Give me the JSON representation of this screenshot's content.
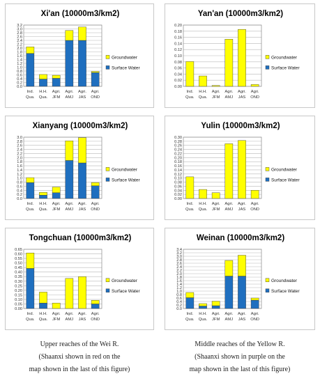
{
  "categories": [
    "Ind.\nQua.",
    "H.H.\nQua.",
    "Agri.\nJFM",
    "Agri.\nAMJ",
    "Agri.\nJAS",
    "Agri.\nOND"
  ],
  "legend": {
    "groundwater": "Groundwater",
    "surface": "Surface Water"
  },
  "colors": {
    "groundwater": "#ffff00",
    "surface": "#1f6fbf"
  },
  "captions": {
    "left": [
      "Upper reaches of the Wei R.",
      "(Shaanxi shown in red on the",
      "map shown in the last of this figure)"
    ],
    "right": [
      "Middle reaches of the Yellow R.",
      "(Shaanxi shown in purple on the",
      "map shown in the last of this figure)"
    ]
  },
  "chart_data": [
    {
      "type": "bar",
      "stacked": true,
      "title": "Xi'an (10000m3/km2)",
      "ylim": [
        0,
        3.2
      ],
      "ystep": 0.2,
      "decimals": 1,
      "legend_position": "right",
      "categories": [
        "Ind. Qua.",
        "H.H. Qua.",
        "Agri. JFM",
        "Agri. AMJ",
        "Agri. JAS",
        "Agri. OND"
      ],
      "series": [
        {
          "name": "Surface Water",
          "values": [
            1.72,
            0.38,
            0.42,
            2.4,
            2.4,
            0.72
          ]
        },
        {
          "name": "Groundwater",
          "values": [
            0.34,
            0.24,
            0.16,
            0.52,
            0.7,
            0.06
          ]
        }
      ]
    },
    {
      "type": "bar",
      "stacked": true,
      "title": "Yan'an (10000m3/km2)",
      "ylim": [
        0,
        0.2
      ],
      "ystep": 0.02,
      "decimals": 2,
      "legend_position": "right",
      "categories": [
        "Ind. Qua.",
        "H.H. Qua.",
        "Agri. JFM",
        "Agri. AMJ",
        "Agri. JAS",
        "Agri. OND"
      ],
      "series": [
        {
          "name": "Surface Water",
          "values": [
            0,
            0,
            0,
            0,
            0,
            0
          ]
        },
        {
          "name": "Groundwater",
          "values": [
            0.081,
            0.034,
            0.003,
            0.154,
            0.186,
            0.006
          ]
        }
      ]
    },
    {
      "type": "bar",
      "stacked": true,
      "title": "Xianyang (10000m3/km2)",
      "ylim": [
        0,
        3.0
      ],
      "ystep": 0.2,
      "decimals": 1,
      "legend_position": "right",
      "categories": [
        "Ind. Qua.",
        "H.H. Qua.",
        "Agri. JFM",
        "Agri. AMJ",
        "Agri. JAS",
        "Agri. OND"
      ],
      "series": [
        {
          "name": "Surface Water",
          "values": [
            0.78,
            0.16,
            0.28,
            1.86,
            1.74,
            0.62
          ]
        },
        {
          "name": "Groundwater",
          "values": [
            0.24,
            0.14,
            0.28,
            0.96,
            1.24,
            0.16
          ]
        }
      ]
    },
    {
      "type": "bar",
      "stacked": true,
      "title": "Yulin (10000m3/km2)",
      "ylim": [
        0,
        0.3
      ],
      "ystep": 0.02,
      "decimals": 2,
      "legend_position": "right",
      "categories": [
        "Ind. Qua.",
        "H.H. Qua.",
        "Agri. JFM",
        "Agri. AMJ",
        "Agri. JAS",
        "Agri. OND"
      ],
      "series": [
        {
          "name": "Surface Water",
          "values": [
            0,
            0,
            0,
            0,
            0,
            0
          ]
        },
        {
          "name": "Groundwater",
          "values": [
            0.106,
            0.044,
            0.028,
            0.268,
            0.284,
            0.04
          ]
        }
      ]
    },
    {
      "type": "bar",
      "stacked": true,
      "title": "Tongchuan (10000m3/km2)",
      "ylim": [
        0,
        0.65
      ],
      "ystep": 0.05,
      "decimals": 2,
      "legend_position": "right",
      "categories": [
        "Ind. Qua.",
        "H.H. Qua.",
        "Agri. JFM",
        "Agri. AMJ",
        "Agri. JAS",
        "Agri. OND"
      ],
      "series": [
        {
          "name": "Surface Water",
          "values": [
            0.44,
            0.06,
            0,
            0,
            0,
            0.05
          ]
        },
        {
          "name": "Groundwater",
          "values": [
            0.17,
            0.12,
            0.06,
            0.33,
            0.35,
            0.04
          ]
        }
      ]
    },
    {
      "type": "bar",
      "stacked": true,
      "title": "Weinan (10000m3/km2)",
      "ylim": [
        0,
        3.4
      ],
      "ystep": 0.2,
      "decimals": 1,
      "legend_position": "right",
      "categories": [
        "Ind. Qua.",
        "H.H. Qua.",
        "Agri. JFM",
        "Agri. AMJ",
        "Agri. JAS",
        "Agri. OND"
      ],
      "series": [
        {
          "name": "Surface Water",
          "values": [
            0.62,
            0.14,
            0.16,
            1.86,
            1.86,
            0.48
          ]
        },
        {
          "name": "Groundwater",
          "values": [
            0.3,
            0.14,
            0.26,
            0.9,
            1.2,
            0.12
          ]
        }
      ]
    }
  ]
}
